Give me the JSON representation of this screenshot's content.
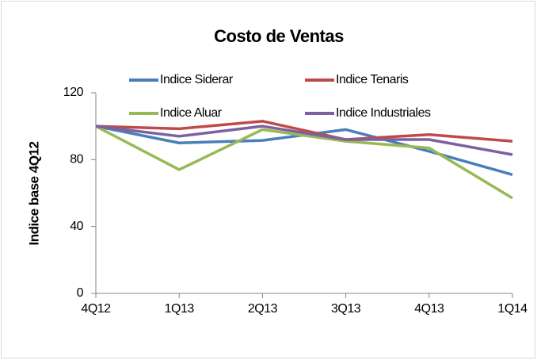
{
  "chart_data": {
    "type": "line",
    "title": "Costo de Ventas",
    "y_label": "Indice base 4Q12",
    "categories": [
      "4Q12",
      "1Q13",
      "2Q13",
      "3Q13",
      "4Q13",
      "1Q14"
    ],
    "series": [
      {
        "name": "Indice Siderar",
        "color": "#4a7ebb",
        "values": [
          100,
          90,
          91.5,
          98,
          85,
          71
        ]
      },
      {
        "name": "Indice Tenaris",
        "color": "#be4b48",
        "values": [
          100,
          98.5,
          103,
          92,
          95,
          91
        ]
      },
      {
        "name": "Indice Aluar",
        "color": "#98b954",
        "values": [
          100,
          74,
          98,
          91,
          87,
          57
        ]
      },
      {
        "name": "Indice Industriales",
        "color": "#7d60a0",
        "values": [
          100,
          94,
          100,
          92,
          92,
          83
        ]
      }
    ],
    "ylim": [
      0,
      120
    ],
    "yticks": [
      0,
      40,
      80,
      120
    ],
    "grid": false
  }
}
